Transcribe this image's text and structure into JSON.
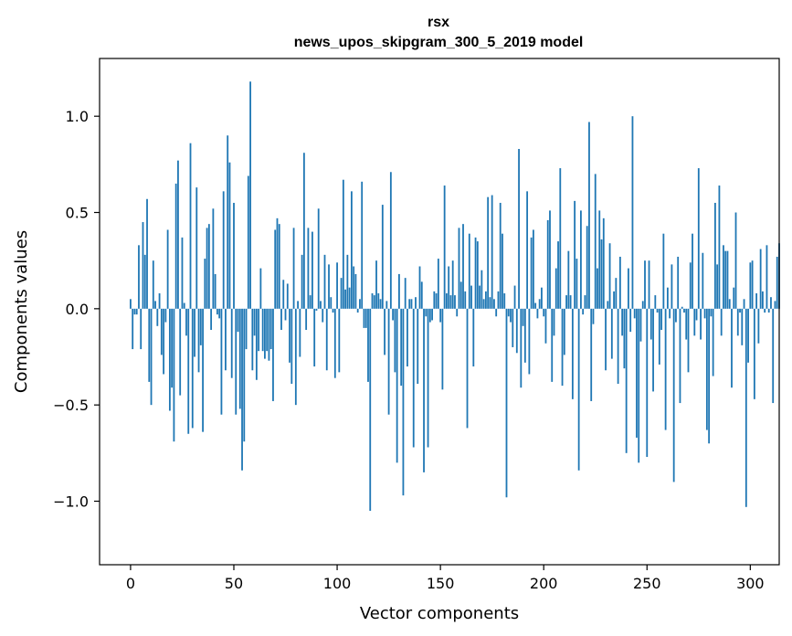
{
  "chart_data": {
    "type": "bar",
    "title": "rsx",
    "subtitle": "news_upos_skipgram_300_5_2019 model",
    "xlabel": "Vector components",
    "ylabel": "Components values",
    "xlim": [
      -15,
      314
    ],
    "ylim": [
      -1.33,
      1.3
    ],
    "xticks": [
      0,
      50,
      100,
      150,
      200,
      250,
      300
    ],
    "yticks": [
      1.0,
      0.5,
      0.0,
      -0.5,
      -1.0
    ],
    "ytick_labels": [
      "1.0",
      "0.5",
      "0.0",
      "−0.5",
      "−1.0"
    ],
    "bar_color": "#1f77b4",
    "values": [
      0.05,
      -0.21,
      -0.03,
      -0.03,
      0.33,
      -0.21,
      0.45,
      0.28,
      0.57,
      -0.38,
      -0.5,
      0.25,
      0.04,
      -0.09,
      0.08,
      -0.24,
      -0.34,
      -0.07,
      0.41,
      -0.53,
      -0.41,
      -0.69,
      0.65,
      0.77,
      -0.45,
      0.37,
      0.03,
      -0.14,
      -0.65,
      0.86,
      -0.62,
      -0.25,
      0.63,
      -0.33,
      -0.19,
      -0.64,
      0.26,
      0.42,
      0.44,
      -0.11,
      0.52,
      0.18,
      -0.03,
      -0.05,
      -0.55,
      0.61,
      -0.32,
      0.9,
      0.76,
      -0.36,
      0.55,
      -0.55,
      -0.12,
      -0.52,
      -0.84,
      -0.69,
      -0.21,
      0.69,
      1.18,
      -0.32,
      -0.14,
      -0.37,
      -0.22,
      0.21,
      -0.22,
      -0.26,
      -0.22,
      -0.27,
      -0.21,
      -0.48,
      0.41,
      0.47,
      0.44,
      -0.11,
      0.15,
      -0.06,
      0.13,
      -0.28,
      -0.39,
      0.42,
      -0.5,
      0.04,
      -0.25,
      0.28,
      0.81,
      -0.11,
      0.42,
      0.07,
      0.4,
      -0.3,
      -0.01,
      0.52,
      0.04,
      -0.07,
      0.28,
      -0.32,
      0.23,
      0.06,
      -0.02,
      -0.36,
      0.24,
      -0.33,
      0.16,
      0.67,
      0.1,
      0.28,
      0.11,
      0.61,
      0.22,
      0.18,
      -0.02,
      0.05,
      0.66,
      -0.1,
      -0.1,
      -0.38,
      -1.05,
      0.08,
      0.07,
      0.25,
      0.08,
      0.05,
      0.54,
      -0.24,
      0.04,
      -0.55,
      0.71,
      -0.06,
      -0.33,
      -0.8,
      0.18,
      -0.4,
      -0.97,
      0.16,
      -0.3,
      0.05,
      0.05,
      -0.72,
      0.06,
      -0.39,
      0.22,
      0.14,
      -0.85,
      -0.04,
      -0.72,
      -0.07,
      -0.06,
      0.09,
      0.08,
      0.26,
      -0.07,
      -0.42,
      0.64,
      0.08,
      0.22,
      0.07,
      0.25,
      0.07,
      -0.04,
      0.42,
      0.14,
      0.44,
      0.09,
      -0.62,
      0.39,
      0.12,
      -0.3,
      0.37,
      0.35,
      0.12,
      0.2,
      0.05,
      0.09,
      0.58,
      0.06,
      0.59,
      0.05,
      -0.04,
      0.09,
      0.55,
      0.39,
      0.08,
      -0.98,
      -0.04,
      -0.07,
      -0.2,
      0.12,
      -0.23,
      0.83,
      -0.41,
      -0.09,
      -0.28,
      0.61,
      -0.34,
      0.37,
      0.41,
      0.03,
      -0.05,
      0.05,
      0.11,
      -0.04,
      -0.18,
      0.46,
      0.51,
      -0.38,
      -0.14,
      0.21,
      0.35,
      0.73,
      -0.4,
      -0.24,
      0.07,
      0.3,
      0.07,
      -0.47,
      0.56,
      0.26,
      -0.84,
      0.51,
      -0.03,
      0.07,
      0.43,
      0.97,
      -0.48,
      -0.08,
      0.7,
      0.21,
      0.51,
      0.36,
      0.47,
      -0.32,
      0.04,
      0.34,
      -0.26,
      0.09,
      0.16,
      -0.39,
      0.27,
      -0.14,
      -0.31,
      -0.75,
      0.21,
      -0.12,
      1.0,
      -0.05,
      -0.67,
      -0.8,
      -0.17,
      0.04,
      0.25,
      -0.77,
      0.25,
      -0.16,
      -0.43,
      0.07,
      -0.02,
      -0.29,
      -0.11,
      0.39,
      -0.63,
      0.11,
      -0.05,
      0.23,
      -0.9,
      -0.07,
      0.27,
      -0.49,
      0.01,
      -0.02,
      -0.16,
      -0.33,
      0.24,
      0.39,
      -0.14,
      -0.06,
      0.73,
      -0.16,
      0.29,
      -0.05,
      -0.63,
      -0.7,
      -0.04,
      -0.35,
      0.55,
      0.23,
      0.64,
      -0.14,
      0.33,
      0.3,
      0.3,
      0.05,
      -0.41,
      0.11,
      0.5,
      -0.14,
      -0.02,
      -0.19,
      0.05,
      -1.03,
      -0.28,
      0.24,
      0.25,
      -0.47,
      0.08,
      -0.18,
      0.31,
      0.09,
      -0.02,
      0.33,
      -0.02,
      0.06,
      -0.49,
      0.04,
      0.27,
      0.34
    ]
  }
}
